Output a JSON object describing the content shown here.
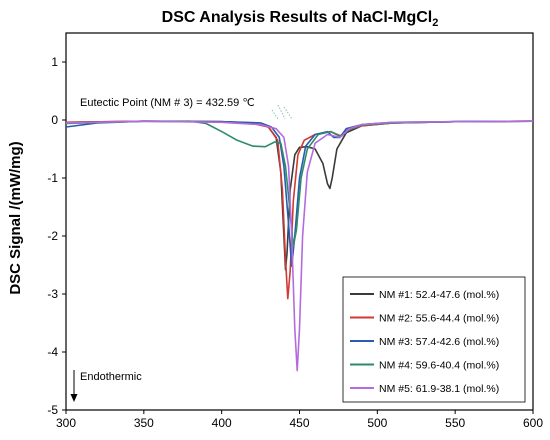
{
  "chart_data": {
    "type": "line",
    "title": "DSC Analysis Results of NaCl-MgCl",
    "title_subscript": "2",
    "xlabel": "",
    "ylabel": "DSC Signal /(mW/mg)",
    "xlim": [
      300,
      600
    ],
    "ylim": [
      -5,
      1.5
    ],
    "x_ticks": [
      300,
      350,
      400,
      450,
      500,
      550,
      600
    ],
    "y_ticks": [
      1,
      0,
      -1,
      -2,
      -3,
      -4,
      -5
    ],
    "grid": false,
    "legend_position": "bottom-right",
    "annotations": {
      "eutectic": "Eutectic Point (NM # 3) = 432.59 ℃",
      "endothermic": "Endothermic"
    },
    "series": [
      {
        "name": "NM #1: 52.4-47.6 (mol.%)",
        "color": "#3a3a3a",
        "points": [
          [
            300,
            -0.04
          ],
          [
            350,
            -0.02
          ],
          [
            400,
            -0.03
          ],
          [
            420,
            -0.05
          ],
          [
            430,
            -0.12
          ],
          [
            435,
            -0.3
          ],
          [
            438,
            -0.9
          ],
          [
            440,
            -2.0
          ],
          [
            441,
            -2.58
          ],
          [
            442,
            -2.3
          ],
          [
            444,
            -1.2
          ],
          [
            447,
            -0.6
          ],
          [
            450,
            -0.47
          ],
          [
            455,
            -0.46
          ],
          [
            460,
            -0.5
          ],
          [
            465,
            -0.75
          ],
          [
            468,
            -1.1
          ],
          [
            469.5,
            -1.18
          ],
          [
            471,
            -1.0
          ],
          [
            474,
            -0.5
          ],
          [
            480,
            -0.22
          ],
          [
            490,
            -0.1
          ],
          [
            510,
            -0.05
          ],
          [
            550,
            -0.03
          ],
          [
            600,
            -0.02
          ]
        ]
      },
      {
        "name": "NM #2: 55.6-44.4 (mol.%)",
        "color": "#d03a35",
        "points": [
          [
            300,
            -0.04
          ],
          [
            350,
            -0.02
          ],
          [
            400,
            -0.03
          ],
          [
            420,
            -0.06
          ],
          [
            430,
            -0.12
          ],
          [
            436,
            -0.35
          ],
          [
            439,
            -1.2
          ],
          [
            441,
            -2.4
          ],
          [
            442.5,
            -3.08
          ],
          [
            444,
            -2.6
          ],
          [
            446,
            -1.4
          ],
          [
            449,
            -0.6
          ],
          [
            453,
            -0.35
          ],
          [
            460,
            -0.25
          ],
          [
            470,
            -0.2
          ],
          [
            476,
            -0.28
          ],
          [
            480,
            -0.18
          ],
          [
            490,
            -0.1
          ],
          [
            510,
            -0.05
          ],
          [
            550,
            -0.03
          ],
          [
            600,
            -0.02
          ]
        ]
      },
      {
        "name": "NM #3: 57.4-42.6 (mol.%)",
        "color": "#2a5cad",
        "points": [
          [
            300,
            -0.12
          ],
          [
            320,
            -0.05
          ],
          [
            350,
            -0.02
          ],
          [
            400,
            -0.03
          ],
          [
            425,
            -0.05
          ],
          [
            432,
            -0.12
          ],
          [
            437,
            -0.3
          ],
          [
            440,
            -0.8
          ],
          [
            443,
            -1.8
          ],
          [
            445,
            -2.52
          ],
          [
            447,
            -2.0
          ],
          [
            450,
            -1.0
          ],
          [
            454,
            -0.45
          ],
          [
            460,
            -0.25
          ],
          [
            468,
            -0.2
          ],
          [
            472,
            -0.3
          ],
          [
            476,
            -0.3
          ],
          [
            480,
            -0.15
          ],
          [
            490,
            -0.08
          ],
          [
            510,
            -0.04
          ],
          [
            550,
            -0.03
          ],
          [
            600,
            -0.02
          ]
        ]
      },
      {
        "name": "NM #4: 59.6-40.4 (mol.%)",
        "color": "#2e8b6a",
        "points": [
          [
            300,
            -0.06
          ],
          [
            350,
            -0.02
          ],
          [
            380,
            -0.02
          ],
          [
            390,
            -0.06
          ],
          [
            400,
            -0.2
          ],
          [
            410,
            -0.35
          ],
          [
            420,
            -0.45
          ],
          [
            428,
            -0.46
          ],
          [
            434,
            -0.38
          ],
          [
            438,
            -0.4
          ],
          [
            441,
            -0.8
          ],
          [
            444,
            -1.6
          ],
          [
            446,
            -2.18
          ],
          [
            448,
            -1.9
          ],
          [
            451,
            -1.0
          ],
          [
            455,
            -0.5
          ],
          [
            462,
            -0.25
          ],
          [
            470,
            -0.2
          ],
          [
            477,
            -0.28
          ],
          [
            482,
            -0.16
          ],
          [
            490,
            -0.09
          ],
          [
            510,
            -0.05
          ],
          [
            550,
            -0.03
          ],
          [
            600,
            -0.02
          ]
        ]
      },
      {
        "name": "NM #5: 61.9-38.1 (mol.%)",
        "color": "#b46be0",
        "points": [
          [
            300,
            -0.05
          ],
          [
            350,
            -0.02
          ],
          [
            400,
            -0.04
          ],
          [
            425,
            -0.08
          ],
          [
            435,
            -0.15
          ],
          [
            440,
            -0.3
          ],
          [
            443,
            -0.8
          ],
          [
            445,
            -2.0
          ],
          [
            447,
            -3.6
          ],
          [
            448.5,
            -4.32
          ],
          [
            450,
            -3.6
          ],
          [
            452,
            -2.0
          ],
          [
            455,
            -0.9
          ],
          [
            460,
            -0.4
          ],
          [
            468,
            -0.25
          ],
          [
            476,
            -0.3
          ],
          [
            482,
            -0.15
          ],
          [
            490,
            -0.08
          ],
          [
            510,
            -0.04
          ],
          [
            550,
            -0.03
          ],
          [
            600,
            -0.02
          ]
        ]
      }
    ]
  }
}
